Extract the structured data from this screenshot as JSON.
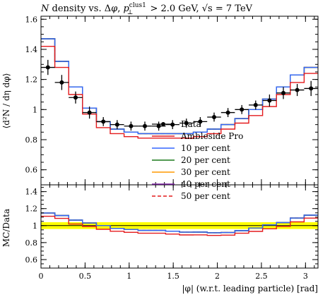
{
  "chart_data": {
    "type": "line",
    "title_parts": {
      "n": "N",
      "a": " density vs. Δ",
      "phi": "φ",
      "b": ", ",
      "p": "p",
      "sup": "clus1",
      "sub": "⊥",
      "c": " > 2.0 GeV, ",
      "sqrt": "√s",
      "d": " = 7 TeV"
    },
    "ylabel_top": "⟨d²N / dη dφ⟩",
    "ylabel_bottom": "MC/Data",
    "xlabel": "|φ| (w.r.t. leading particle) [rad]",
    "x_ticks": [
      "0",
      "0.5",
      "1",
      "1.5",
      "2",
      "2.5",
      "3"
    ],
    "x_tick_values": [
      0,
      0.5,
      1,
      1.5,
      2,
      2.5,
      3
    ],
    "xlim": [
      0,
      3.1416
    ],
    "top_panel": {
      "ylim": [
        0.5,
        1.62
      ],
      "y_ticks": [
        "0.6",
        "0.8",
        "1",
        "1.2",
        "1.4",
        "1.6"
      ],
      "y_tick_values": [
        0.6,
        0.8,
        1.0,
        1.2,
        1.4,
        1.6
      ]
    },
    "ratio_panel": {
      "ylim": [
        0.5,
        1.48
      ],
      "y_ticks": [
        "0.6",
        "0.8",
        "1",
        "1.2",
        "1.4"
      ],
      "y_tick_values": [
        0.6,
        0.8,
        1.0,
        1.2,
        1.4
      ],
      "band_low": 0.96,
      "band_high": 1.04
    },
    "bin_edges": [
      0,
      0.1571,
      0.3142,
      0.4712,
      0.6283,
      0.7854,
      0.9425,
      1.0996,
      1.2566,
      1.4137,
      1.5708,
      1.7279,
      1.885,
      2.042,
      2.1991,
      2.3562,
      2.5133,
      2.6704,
      2.8274,
      2.9845,
      3.1416
    ],
    "data": {
      "name": "Data",
      "x": [
        0.0785,
        0.2356,
        0.3927,
        0.5498,
        0.7069,
        0.864,
        1.021,
        1.1781,
        1.3352,
        1.4923,
        1.6493,
        1.8064,
        1.9635,
        2.1206,
        2.2777,
        2.4347,
        2.5918,
        2.7489,
        2.906,
        3.063
      ],
      "y": [
        1.28,
        1.18,
        1.08,
        0.98,
        0.92,
        0.9,
        0.89,
        0.89,
        0.89,
        0.9,
        0.91,
        0.92,
        0.95,
        0.98,
        1.0,
        1.03,
        1.06,
        1.11,
        1.13,
        1.14
      ],
      "yerr": [
        0.05,
        0.05,
        0.04,
        0.04,
        0.03,
        0.03,
        0.03,
        0.03,
        0.03,
        0.03,
        0.03,
        0.03,
        0.03,
        0.03,
        0.03,
        0.03,
        0.04,
        0.04,
        0.04,
        0.05
      ],
      "color": "#000000"
    },
    "series": [
      {
        "name": "Ambleside Pro",
        "color": "#e41a1c",
        "dash": "",
        "y": [
          1.42,
          1.28,
          1.1,
          0.97,
          0.88,
          0.84,
          0.82,
          0.81,
          0.81,
          0.81,
          0.81,
          0.82,
          0.84,
          0.87,
          0.91,
          0.96,
          1.02,
          1.1,
          1.18,
          1.24
        ]
      },
      {
        "name": "10 per cent",
        "color": "#3366ff",
        "dash": "",
        "y": [
          1.47,
          1.32,
          1.15,
          1.01,
          0.92,
          0.87,
          0.85,
          0.84,
          0.84,
          0.84,
          0.84,
          0.85,
          0.87,
          0.9,
          0.94,
          1.0,
          1.07,
          1.15,
          1.23,
          1.28
        ]
      },
      {
        "name": "20 per cent",
        "color": "#1a7a1a",
        "dash": "",
        "y": [
          1.47,
          1.32,
          1.15,
          1.01,
          0.92,
          0.87,
          0.85,
          0.84,
          0.84,
          0.84,
          0.84,
          0.85,
          0.87,
          0.9,
          0.94,
          1.0,
          1.07,
          1.15,
          1.23,
          1.28
        ]
      },
      {
        "name": "30 per cent",
        "color": "#ff9900",
        "dash": "",
        "y": [
          1.47,
          1.32,
          1.15,
          1.01,
          0.92,
          0.87,
          0.85,
          0.84,
          0.84,
          0.84,
          0.84,
          0.85,
          0.87,
          0.9,
          0.94,
          1.0,
          1.07,
          1.15,
          1.23,
          1.28
        ]
      },
      {
        "name": "40 per cent",
        "color": "#7a1fa2",
        "dash": "",
        "y": [
          1.47,
          1.32,
          1.15,
          1.01,
          0.92,
          0.87,
          0.85,
          0.84,
          0.84,
          0.84,
          0.84,
          0.85,
          0.87,
          0.9,
          0.94,
          1.0,
          1.07,
          1.15,
          1.23,
          1.28
        ]
      },
      {
        "name": "50 per cent",
        "color": "#e41a1c",
        "dash": "5,3",
        "y": [
          1.47,
          1.32,
          1.15,
          1.01,
          0.92,
          0.87,
          0.85,
          0.84,
          0.84,
          0.84,
          0.84,
          0.85,
          0.87,
          0.9,
          0.94,
          1.0,
          1.07,
          1.15,
          1.23,
          1.28
        ]
      }
    ],
    "legend_position": "center-right"
  }
}
